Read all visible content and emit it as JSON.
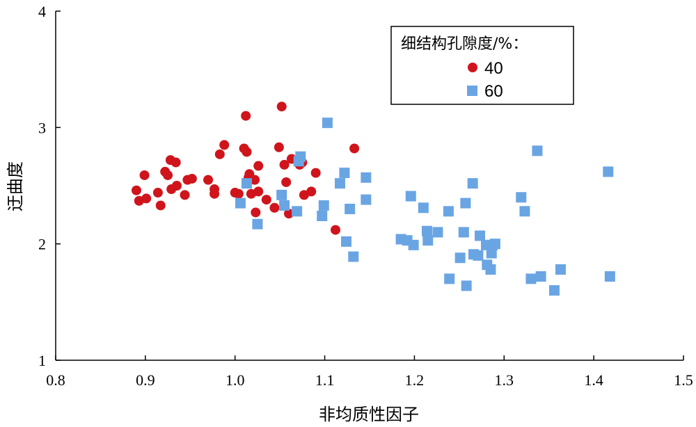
{
  "chart_data": {
    "type": "scatter",
    "xlabel": "非均质性因子",
    "ylabel": "迂曲度",
    "xlim": [
      0.8,
      1.5
    ],
    "ylim": [
      1,
      4
    ],
    "xticks": [
      "0.8",
      "0.9",
      "1.0",
      "1.1",
      "1.2",
      "1.3",
      "1.4",
      "1.5"
    ],
    "yticks": [
      "1",
      "2",
      "3",
      "4"
    ],
    "grid": false,
    "legend": {
      "title": "细结构孔隙度/%：",
      "position": "top-right"
    },
    "series": [
      {
        "name": "40",
        "marker": "circle",
        "color": "#d0141c",
        "points": [
          [
            0.89,
            2.46
          ],
          [
            0.893,
            2.37
          ],
          [
            0.899,
            2.59
          ],
          [
            0.901,
            2.39
          ],
          [
            0.914,
            2.44
          ],
          [
            0.917,
            2.33
          ],
          [
            0.922,
            2.62
          ],
          [
            0.925,
            2.59
          ],
          [
            0.928,
            2.72
          ],
          [
            0.929,
            2.47
          ],
          [
            0.934,
            2.7
          ],
          [
            0.935,
            2.5
          ],
          [
            0.944,
            2.42
          ],
          [
            0.947,
            2.55
          ],
          [
            0.952,
            2.56
          ],
          [
            0.97,
            2.55
          ],
          [
            0.977,
            2.47
          ],
          [
            0.977,
            2.43
          ],
          [
            0.983,
            2.77
          ],
          [
            0.988,
            2.85
          ],
          [
            1.0,
            2.44
          ],
          [
            1.004,
            2.43
          ],
          [
            1.01,
            2.82
          ],
          [
            1.012,
            3.1
          ],
          [
            1.013,
            2.79
          ],
          [
            1.015,
            2.57
          ],
          [
            1.016,
            2.6
          ],
          [
            1.018,
            2.43
          ],
          [
            1.022,
            2.55
          ],
          [
            1.023,
            2.27
          ],
          [
            1.026,
            2.67
          ],
          [
            1.026,
            2.45
          ],
          [
            1.035,
            2.38
          ],
          [
            1.044,
            2.31
          ],
          [
            1.049,
            2.83
          ],
          [
            1.052,
            3.18
          ],
          [
            1.055,
            2.68
          ],
          [
            1.057,
            2.53
          ],
          [
            1.06,
            2.26
          ],
          [
            1.063,
            2.73
          ],
          [
            1.072,
            2.68
          ],
          [
            1.075,
            2.7
          ],
          [
            1.077,
            2.42
          ],
          [
            1.085,
            2.45
          ],
          [
            1.09,
            2.61
          ],
          [
            1.112,
            2.12
          ],
          [
            1.133,
            2.82
          ]
        ]
      },
      {
        "name": "60",
        "marker": "square",
        "color": "#6aa5e3",
        "points": [
          [
            1.006,
            2.35
          ],
          [
            1.013,
            2.52
          ],
          [
            1.025,
            2.17
          ],
          [
            1.052,
            2.42
          ],
          [
            1.055,
            2.33
          ],
          [
            1.069,
            2.28
          ],
          [
            1.071,
            2.71
          ],
          [
            1.073,
            2.75
          ],
          [
            1.097,
            2.24
          ],
          [
            1.099,
            2.33
          ],
          [
            1.103,
            3.04
          ],
          [
            1.117,
            2.52
          ],
          [
            1.122,
            2.61
          ],
          [
            1.124,
            2.02
          ],
          [
            1.128,
            2.3
          ],
          [
            1.132,
            1.89
          ],
          [
            1.146,
            2.57
          ],
          [
            1.146,
            2.38
          ],
          [
            1.185,
            2.04
          ],
          [
            1.192,
            2.03
          ],
          [
            1.196,
            2.41
          ],
          [
            1.199,
            1.99
          ],
          [
            1.21,
            2.31
          ],
          [
            1.214,
            2.11
          ],
          [
            1.215,
            2.03
          ],
          [
            1.226,
            2.1
          ],
          [
            1.238,
            2.28
          ],
          [
            1.239,
            1.7
          ],
          [
            1.251,
            1.88
          ],
          [
            1.255,
            2.1
          ],
          [
            1.257,
            2.35
          ],
          [
            1.258,
            1.64
          ],
          [
            1.265,
            2.52
          ],
          [
            1.266,
            1.91
          ],
          [
            1.271,
            1.9
          ],
          [
            1.273,
            2.07
          ],
          [
            1.28,
            1.99
          ],
          [
            1.281,
            1.82
          ],
          [
            1.285,
            1.78
          ],
          [
            1.286,
            1.92
          ],
          [
            1.287,
            1.99
          ],
          [
            1.29,
            2.0
          ],
          [
            1.319,
            2.4
          ],
          [
            1.323,
            2.28
          ],
          [
            1.33,
            1.7
          ],
          [
            1.337,
            2.8
          ],
          [
            1.341,
            1.72
          ],
          [
            1.356,
            1.6
          ],
          [
            1.363,
            1.78
          ],
          [
            1.416,
            2.62
          ],
          [
            1.418,
            1.72
          ]
        ]
      }
    ]
  }
}
